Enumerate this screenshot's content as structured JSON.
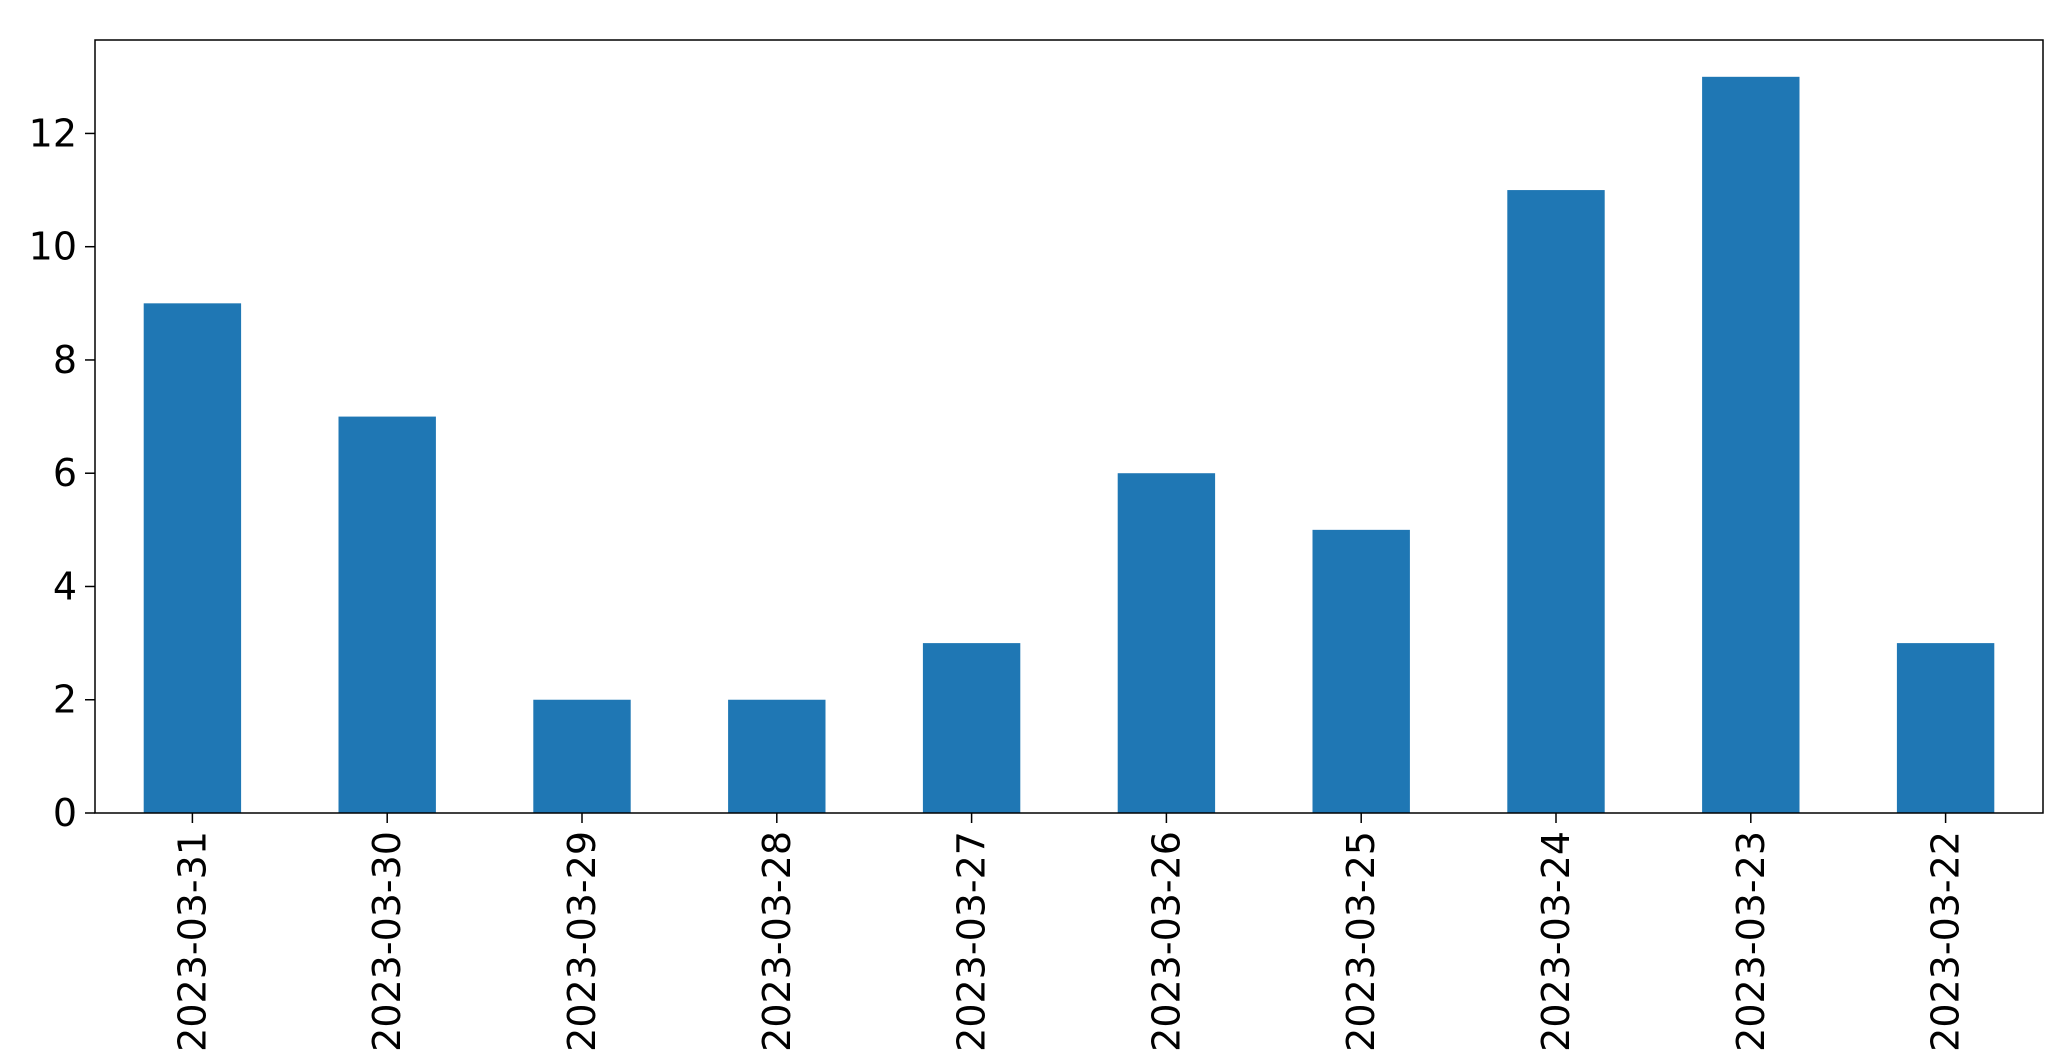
{
  "chart_data": {
    "type": "bar",
    "categories": [
      "2023-03-31",
      "2023-03-30",
      "2023-03-29",
      "2023-03-28",
      "2023-03-27",
      "2023-03-26",
      "2023-03-25",
      "2023-03-24",
      "2023-03-23",
      "2023-03-22"
    ],
    "values": [
      9,
      7,
      2,
      2,
      3,
      6,
      5,
      11,
      13,
      3
    ],
    "title": "",
    "xlabel": "",
    "ylabel": "",
    "ylim": [
      0,
      13.65
    ],
    "yticks": [
      0,
      2,
      4,
      6,
      8,
      10,
      12
    ],
    "grid": false,
    "legend": "none",
    "bar_color": "#1f77b4"
  }
}
